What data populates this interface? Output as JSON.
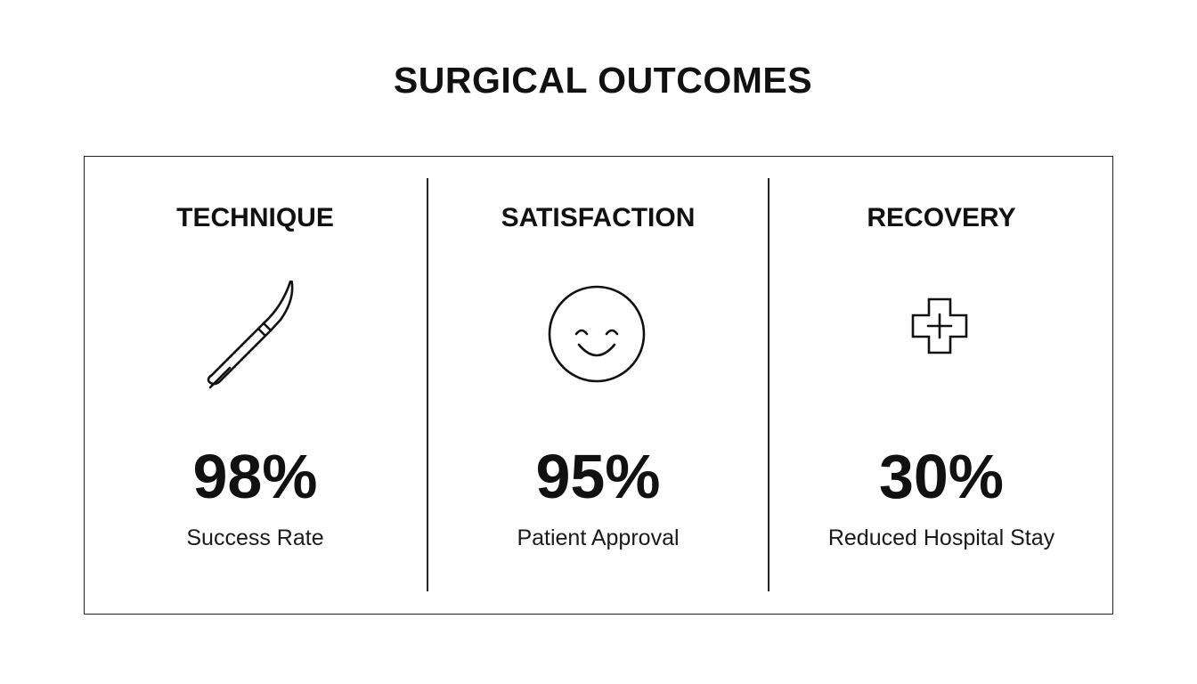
{
  "title": "SURGICAL OUTCOMES",
  "metrics": [
    {
      "heading": "TECHNIQUE",
      "icon": "scalpel-icon",
      "value": "98%",
      "caption": "Success Rate"
    },
    {
      "heading": "SATISFACTION",
      "icon": "smiley-face-icon",
      "value": "95%",
      "caption": "Patient Approval"
    },
    {
      "heading": "RECOVERY",
      "icon": "medical-cross-icon",
      "value": "30%",
      "caption": "Reduced Hospital Stay"
    }
  ]
}
